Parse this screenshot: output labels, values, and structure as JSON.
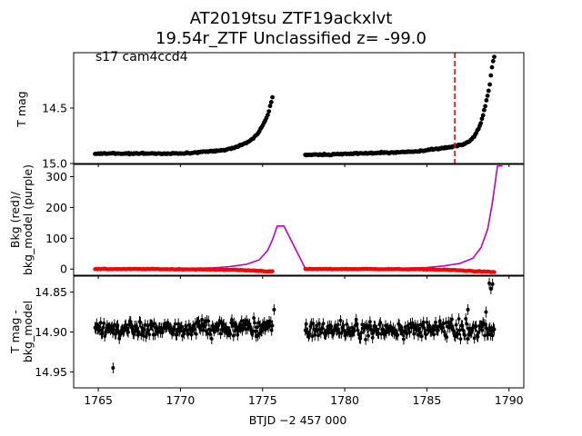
{
  "title_line1": "AT2019tsu  ZTF19ackxlvt",
  "title_line2": "19.54r_ZTF Unclassified z= -99.0",
  "annotation": "s17 cam4ccd4",
  "chart_data": [
    {
      "type": "scatter",
      "panel": "top",
      "ylabel": "T mag",
      "ylim": [
        15.0,
        14.0
      ],
      "inverted_y": true,
      "yticks": [
        "14.5",
        "15.0"
      ],
      "vertical_line": {
        "x": 1786.7,
        "color": "#ff0000",
        "style": "dashed"
      },
      "series": [
        {
          "color": "#000000",
          "segments": [
            {
              "x_start": 1764.8,
              "x_end": 1775.6,
              "points": [
                [
                  1764.8,
                  14.91
                ],
                [
                  1766.0,
                  14.91
                ],
                [
                  1768.0,
                  14.91
                ],
                [
                  1770.0,
                  14.91
                ],
                [
                  1771.0,
                  14.9
                ],
                [
                  1772.0,
                  14.89
                ],
                [
                  1773.0,
                  14.87
                ],
                [
                  1773.8,
                  14.83
                ],
                [
                  1774.3,
                  14.79
                ],
                [
                  1774.7,
                  14.73
                ],
                [
                  1775.0,
                  14.66
                ],
                [
                  1775.3,
                  14.57
                ],
                [
                  1775.6,
                  14.4
                ]
              ]
            },
            {
              "x_start": 1777.6,
              "x_end": 1789.1,
              "points": [
                [
                  1777.6,
                  14.92
                ],
                [
                  1779.0,
                  14.92
                ],
                [
                  1781.0,
                  14.91
                ],
                [
                  1783.0,
                  14.9
                ],
                [
                  1784.5,
                  14.89
                ],
                [
                  1785.5,
                  14.87
                ],
                [
                  1786.5,
                  14.85
                ],
                [
                  1787.2,
                  14.83
                ],
                [
                  1787.6,
                  14.8
                ],
                [
                  1787.9,
                  14.75
                ],
                [
                  1788.2,
                  14.67
                ],
                [
                  1788.4,
                  14.58
                ],
                [
                  1788.6,
                  14.45
                ],
                [
                  1788.8,
                  14.32
                ],
                [
                  1788.9,
                  14.2
                ],
                [
                  1789.0,
                  14.1
                ],
                [
                  1789.1,
                  14.04
                ]
              ]
            }
          ]
        }
      ]
    },
    {
      "type": "line",
      "panel": "middle",
      "ylabel": "Bkg (red)/\nbkg_model (purple)",
      "ylim": [
        -20,
        340
      ],
      "yticks": [
        0,
        100,
        200,
        300
      ],
      "series": [
        {
          "color": "#bf00bf",
          "style": "line",
          "points": [
            [
              1764.8,
              0
            ],
            [
              1770.0,
              1
            ],
            [
              1772.0,
              4
            ],
            [
              1773.0,
              8
            ],
            [
              1774.0,
              15
            ],
            [
              1774.8,
              30
            ],
            [
              1775.3,
              60
            ],
            [
              1775.6,
              95
            ],
            [
              1775.9,
              140
            ],
            [
              1776.3,
              140
            ],
            [
              1777.6,
              2
            ],
            [
              1780.0,
              1
            ],
            [
              1783.0,
              2
            ],
            [
              1785.0,
              5
            ],
            [
              1786.0,
              10
            ],
            [
              1787.0,
              18
            ],
            [
              1787.8,
              35
            ],
            [
              1788.3,
              70
            ],
            [
              1788.7,
              130
            ],
            [
              1789.0,
              220
            ],
            [
              1789.3,
              335
            ],
            [
              1789.6,
              335
            ]
          ]
        },
        {
          "color": "#ff0000",
          "style": "points",
          "points": [
            [
              1764.8,
              0
            ],
            [
              1768.0,
              0
            ],
            [
              1771.0,
              -1
            ],
            [
              1773.0,
              -2
            ],
            [
              1774.5,
              -5
            ],
            [
              1775.6,
              -8
            ],
            [
              1777.6,
              0
            ],
            [
              1782.0,
              0
            ],
            [
              1785.0,
              -1
            ],
            [
              1786.5,
              -3
            ],
            [
              1788.0,
              -7
            ],
            [
              1789.1,
              -10
            ]
          ]
        }
      ]
    },
    {
      "type": "scatter",
      "panel": "bottom",
      "ylabel": "T mag -\nbkg_model",
      "ylim": [
        14.97,
        14.83
      ],
      "inverted_y": true,
      "yticks": [
        "14.85",
        "14.90",
        "14.95"
      ],
      "xlabel": "BTJD −2 457 000",
      "xlim": [
        1763.5,
        1790.9
      ],
      "xticks": [
        1765,
        1770,
        1775,
        1780,
        1785,
        1790
      ],
      "series": [
        {
          "color": "#000000",
          "errorbars": true,
          "segments": [
            {
              "x_start": 1764.8,
              "x_end": 1775.6,
              "center": 14.895,
              "spread": 0.011
            },
            {
              "x_start": 1777.6,
              "x_end": 1789.1,
              "center": 14.897,
              "spread": 0.011
            }
          ],
          "outliers": [
            [
              1765.9,
              14.945
            ],
            [
              1775.7,
              14.872
            ],
            [
              1787.5,
              14.872
            ],
            [
              1788.6,
              14.875
            ],
            [
              1788.8,
              14.839
            ],
            [
              1788.9,
              14.846
            ],
            [
              1789.0,
              14.84
            ]
          ]
        }
      ]
    }
  ]
}
